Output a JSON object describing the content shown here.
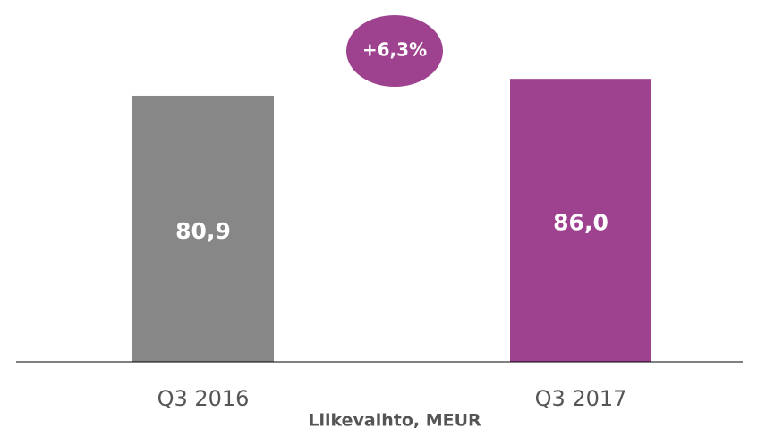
{
  "chart_data": {
    "type": "bar",
    "categories": [
      "Q3 2016",
      "Q3 2017"
    ],
    "values": [
      80.9,
      86.0
    ],
    "value_labels": [
      "80,9",
      "86,0"
    ],
    "colors": [
      "#878787",
      "#9e4290"
    ],
    "annotation": "+6,3%",
    "x_label": "Liikevaihto, MEUR",
    "ylim": [
      0,
      100
    ]
  }
}
